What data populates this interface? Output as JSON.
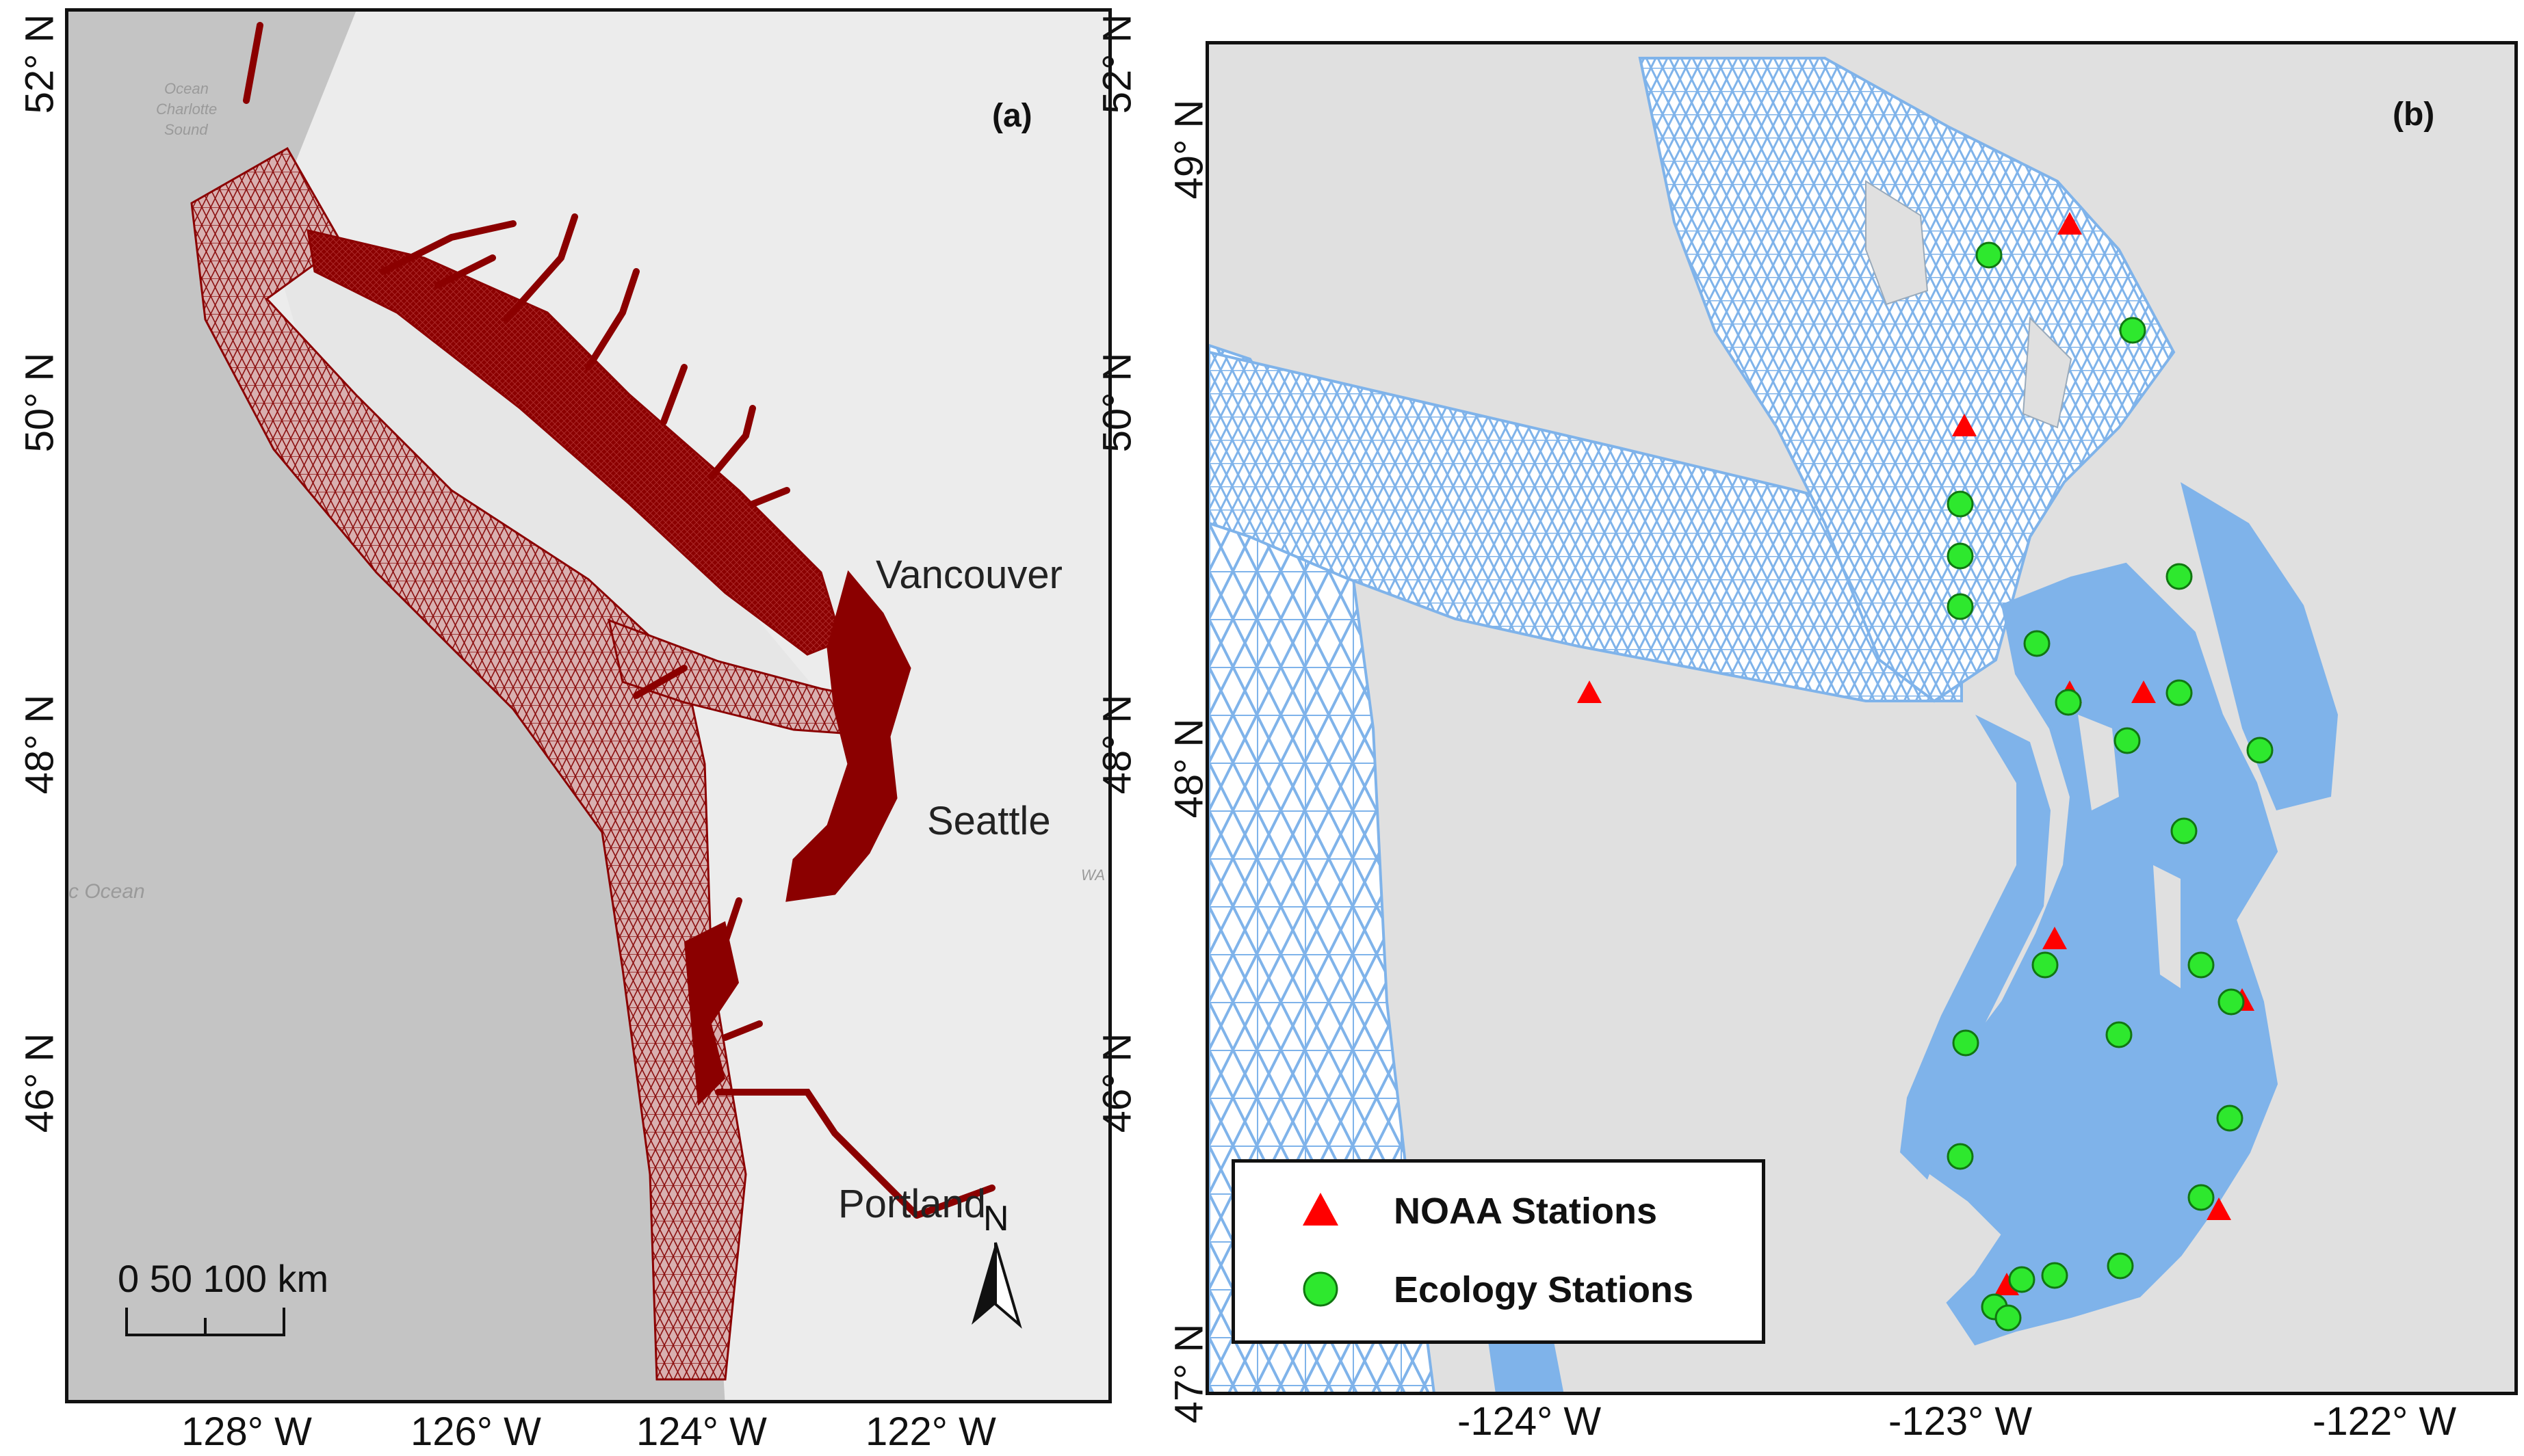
{
  "panel_a": {
    "label": "(a)",
    "lat_labels": [
      "52° N",
      "50° N",
      "48° N",
      "46° N"
    ],
    "lon_labels": [
      "128° W",
      "126° W",
      "124° W",
      "122° W"
    ],
    "cities": [
      "Vancouver",
      "Seattle",
      "Portland"
    ],
    "basemap_labels": [
      "Ocean",
      "Charlotte",
      "Sound",
      "c Ocean",
      "WA"
    ],
    "scale_bar": "0 50 100 km",
    "north_label": "N",
    "mesh_color": "#8b0000"
  },
  "panel_b": {
    "label": "(b)",
    "lat_labels": [
      "49° N",
      "48° N",
      "47° N"
    ],
    "lon_labels": [
      "-124° W",
      "-123° W",
      "-122° W"
    ],
    "water_color": "#7fb3ea",
    "legend": {
      "noaa": "NOAA Stations",
      "ecology": "Ecology Stations"
    },
    "noaa_color": "#ff0000",
    "ecology_color": "#2ee82e"
  }
}
